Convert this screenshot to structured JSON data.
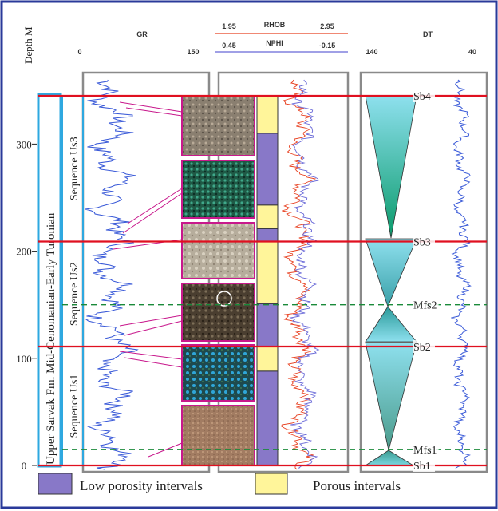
{
  "header": {
    "depth_label": "Depth M",
    "gr_label": "GR",
    "gr_min": "0",
    "gr_max": "150",
    "rhob_label": "RHOB",
    "rhob_min": "1.95",
    "rhob_max": "2.95",
    "nphi_label": "NPHI",
    "nphi_min": "0.45",
    "nphi_max": "-0.15",
    "dt_label": "DT",
    "dt_min": "140",
    "dt_max": "40"
  },
  "depth_ticks": [
    "0",
    "100",
    "200",
    "300"
  ],
  "depth_tick_values": [
    0,
    100,
    200,
    300
  ],
  "formation_label": "Upper Sarvak Fm.",
  "age_label": "Mid-Cenomanian-Early Turonian",
  "sequences": [
    {
      "label": "Sequence Us3",
      "top": 345,
      "base": 209
    },
    {
      "label": "Sequence Us2",
      "top": 209,
      "base": 111
    },
    {
      "label": "Sequence Us1",
      "top": 111,
      "base": 0
    }
  ],
  "surfaces": [
    {
      "label": "Sb4",
      "depth": 345,
      "kind": "boundary"
    },
    {
      "label": "Sb3",
      "depth": 209,
      "kind": "boundary"
    },
    {
      "label": "Mfs2",
      "depth": 150,
      "kind": "flooding"
    },
    {
      "label": "Sb2",
      "depth": 111,
      "kind": "boundary"
    },
    {
      "label": "Mfs1",
      "depth": 15,
      "kind": "flooding"
    },
    {
      "label": "Sb1",
      "depth": 0,
      "kind": "boundary"
    }
  ],
  "porosity_intervals": [
    {
      "top": 345,
      "base": 310,
      "type": "porous"
    },
    {
      "top": 310,
      "base": 243,
      "type": "low"
    },
    {
      "top": 243,
      "base": 221,
      "type": "porous"
    },
    {
      "top": 221,
      "base": 209,
      "type": "low"
    },
    {
      "top": 209,
      "base": 151,
      "type": "porous"
    },
    {
      "top": 151,
      "base": 111,
      "type": "low"
    },
    {
      "top": 111,
      "base": 88,
      "type": "porous"
    },
    {
      "top": 88,
      "base": 0,
      "type": "low"
    }
  ],
  "legend": {
    "low_label": "Low porosity intervals",
    "porous_label": "Porous intervals"
  },
  "colors": {
    "frame": "#2a3a9a",
    "boundary": "#e01020",
    "flooding": "#1a8a3a",
    "low_porosity": "#8878c8",
    "porous": "#fff59a",
    "gr_curve": "#3a5ad8",
    "rhob_curve": "#e84020",
    "nphi_curve": "#6868d8",
    "seq_box": "#2ea8e0"
  }
}
